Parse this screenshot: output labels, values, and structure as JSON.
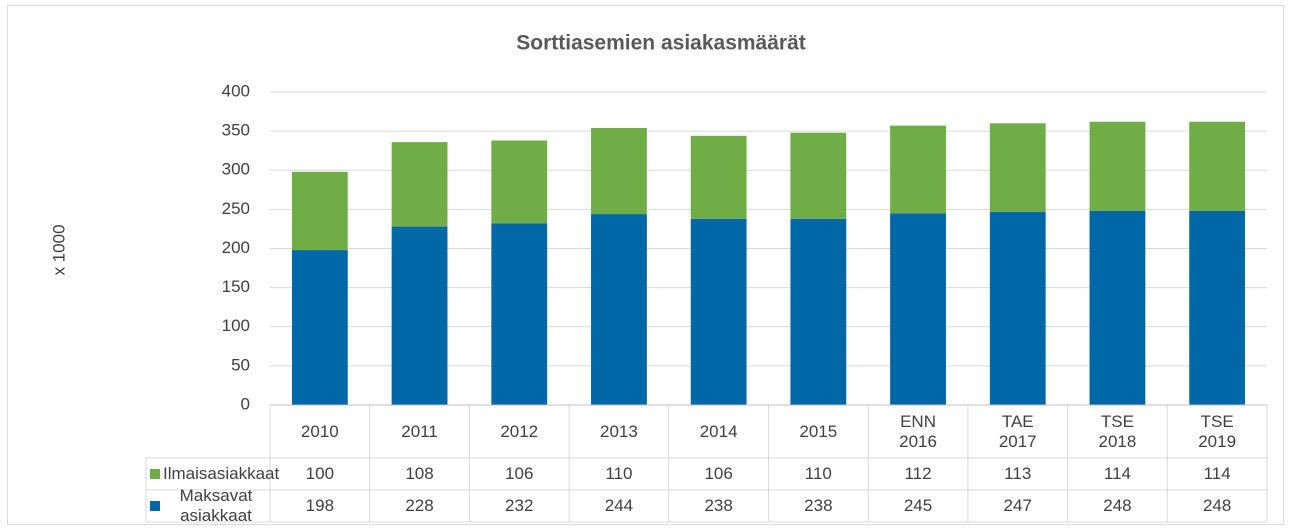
{
  "chart_data": {
    "type": "stacked_bar",
    "title": "Sorttiasemien asiakasmäärät",
    "y_label": "x 1000",
    "categories": [
      "2010",
      "2011",
      "2012",
      "2013",
      "2014",
      "2015",
      "ENN 2016",
      "TAE 2017",
      "TSE 2018",
      "TSE 2019"
    ],
    "series": [
      {
        "name": "Ilmaisasiakkaat",
        "color": "#70ad47",
        "values": [
          100,
          108,
          106,
          110,
          106,
          110,
          112,
          113,
          114,
          114
        ]
      },
      {
        "name": "Maksavat asiakkaat",
        "color": "#0068a6",
        "values": [
          198,
          228,
          232,
          244,
          238,
          238,
          245,
          247,
          248,
          248
        ]
      }
    ],
    "ylim": [
      0,
      400
    ],
    "yticks": [
      0,
      50,
      100,
      150,
      200,
      250,
      300,
      350,
      400
    ],
    "grid": true,
    "data_table": true
  }
}
